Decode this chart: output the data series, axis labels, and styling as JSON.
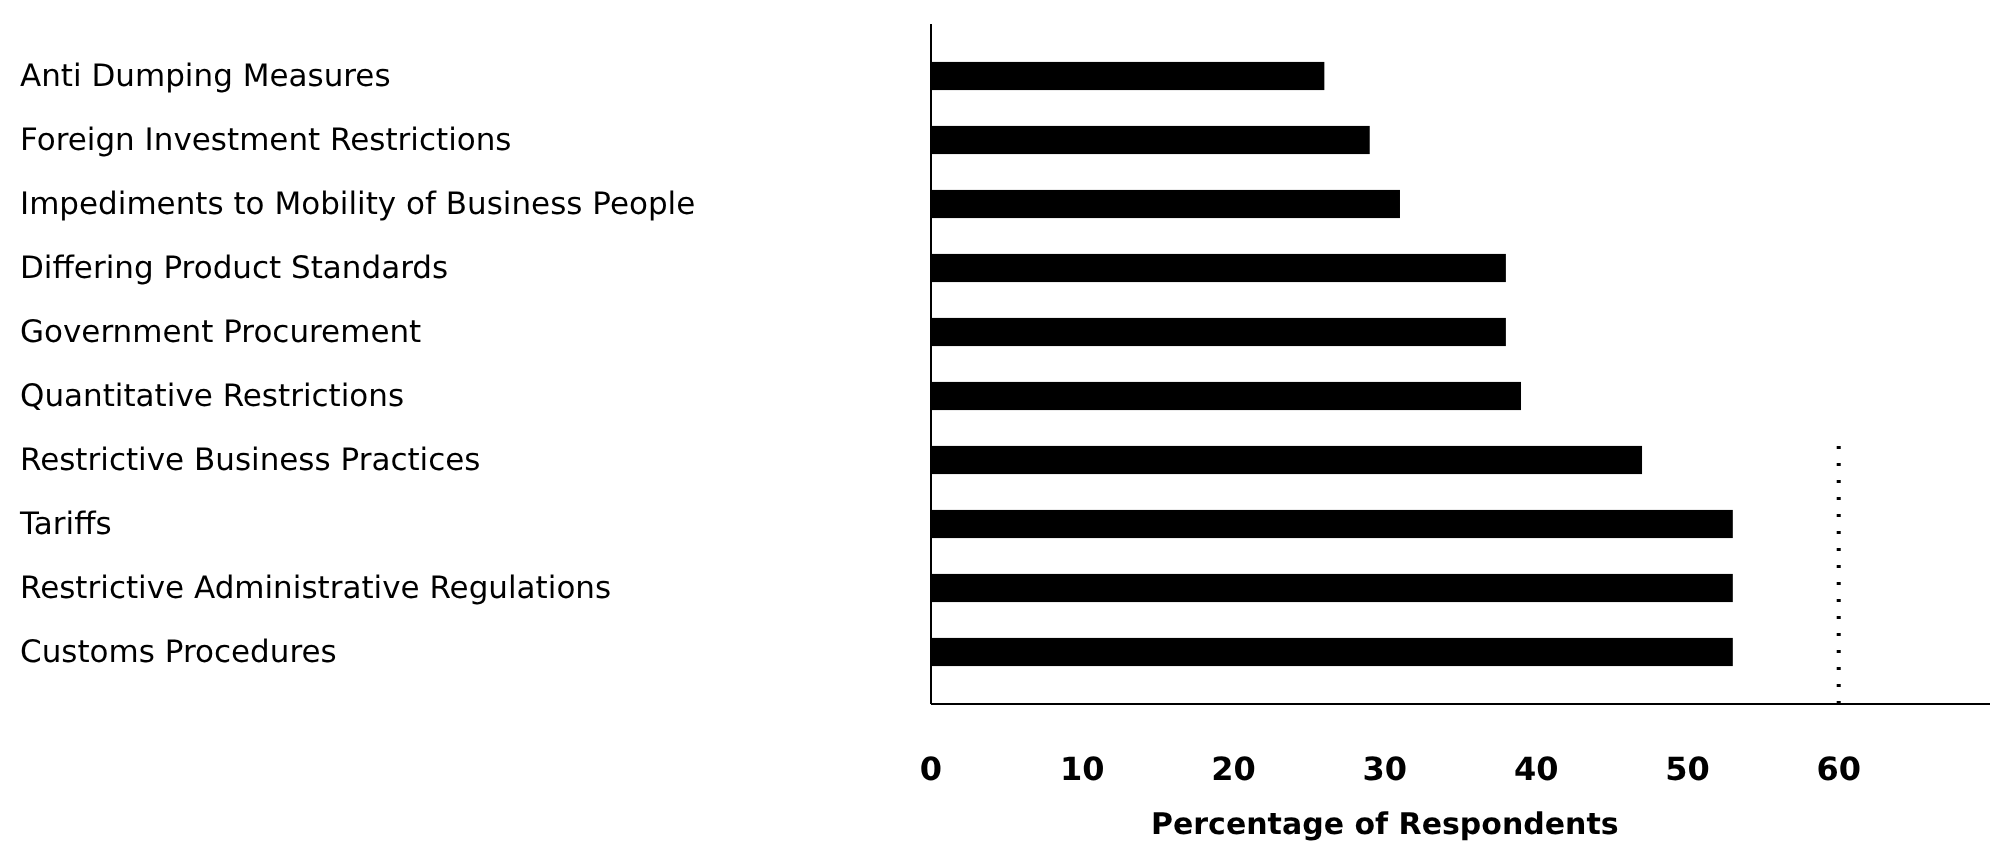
{
  "chart_data": {
    "type": "bar",
    "orientation": "horizontal",
    "xlabel": "Percentage of Respondents",
    "categories": [
      "Anti Dumping Measures",
      "Foreign Investment Restrictions",
      "Impediments to Mobility of Business People",
      "Differing Product Standards",
      "Government Procurement",
      "Quantitative Restrictions",
      "Restrictive Business Practices",
      "Tariffs",
      "Restrictive Administrative Regulations",
      "Customs Procedures"
    ],
    "values": [
      26,
      29,
      31,
      38,
      38,
      39,
      47,
      53,
      53,
      53
    ],
    "color": "#000000",
    "xlim": [
      0,
      70
    ],
    "xticks": [
      0,
      10,
      20,
      30,
      40,
      50,
      60
    ],
    "grid": false,
    "ref_lines": [
      {
        "axis": "x",
        "value": 60,
        "color": "#000000",
        "line_style": "dotted"
      }
    ]
  }
}
